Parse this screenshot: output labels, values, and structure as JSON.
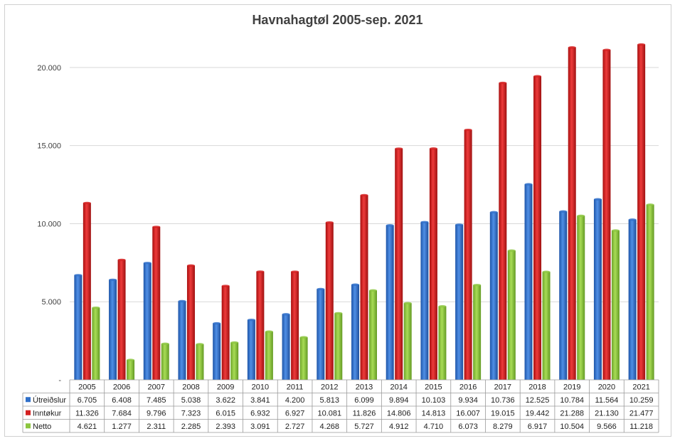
{
  "chart_data": {
    "type": "bar",
    "title": "Havnahagtøl 2005-sep. 2021",
    "categories": [
      "2005",
      "2006",
      "2007",
      "2008",
      "2009",
      "2010",
      "2011",
      "2012",
      "2013",
      "2014",
      "2015",
      "2016",
      "2017",
      "2018",
      "2019",
      "2020",
      "2021"
    ],
    "ylim": [
      0,
      22500
    ],
    "yticks": [
      0,
      5000,
      10000,
      15000,
      20000
    ],
    "ytick_labels": [
      "-",
      "5.000",
      "10.000",
      "15.000",
      "20.000"
    ],
    "grid": true,
    "legend": "data-table-left",
    "series": [
      {
        "name": "Útreiðslur",
        "color": "#2f6fc9",
        "values": [
          6705,
          6408,
          7485,
          5038,
          3622,
          3841,
          4200,
          5813,
          6099,
          9894,
          10103,
          9934,
          10736,
          12525,
          10784,
          11564,
          10259
        ],
        "labels": [
          "6.705",
          "6.408",
          "7.485",
          "5.038",
          "3.622",
          "3.841",
          "4.200",
          "5.813",
          "6.099",
          "9.894",
          "10.103",
          "9.934",
          "10.736",
          "12.525",
          "10.784",
          "11.564",
          "10.259"
        ]
      },
      {
        "name": "Inntøkur",
        "color": "#d42020",
        "values": [
          11326,
          7684,
          9796,
          7323,
          6015,
          6932,
          6927,
          10081,
          11826,
          14806,
          14813,
          16007,
          19015,
          19442,
          21288,
          21130,
          21477
        ],
        "labels": [
          "11.326",
          "7.684",
          "9.796",
          "7.323",
          "6.015",
          "6.932",
          "6.927",
          "10.081",
          "11.826",
          "14.806",
          "14.813",
          "16.007",
          "19.015",
          "19.442",
          "21.288",
          "21.130",
          "21.477"
        ]
      },
      {
        "name": "Netto",
        "color": "#8cc63f",
        "values": [
          4621,
          1277,
          2311,
          2285,
          2393,
          3091,
          2727,
          4268,
          5727,
          4912,
          4710,
          6073,
          8279,
          6917,
          10504,
          9566,
          11218
        ],
        "labels": [
          "4.621",
          "1.277",
          "2.311",
          "2.285",
          "2.393",
          "3.091",
          "2.727",
          "4.268",
          "5.727",
          "4.912",
          "4.710",
          "6.073",
          "8.279",
          "6.917",
          "10.504",
          "9.566",
          "11.218"
        ]
      }
    ]
  }
}
